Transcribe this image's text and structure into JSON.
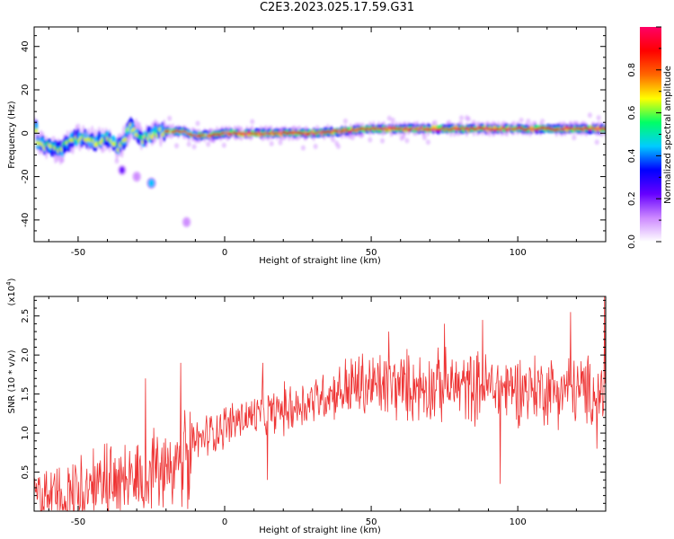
{
  "title": "C2E3.2023.025.17.59.G31",
  "chart_data": [
    {
      "type": "heatmap",
      "xlabel": "Height of straight line (km)",
      "ylabel": "Frequency (Hz)",
      "xlim": [
        -65,
        130
      ],
      "ylim": [
        -50,
        49
      ],
      "xticks": [
        -50,
        0,
        50,
        100
      ],
      "yticks": [
        -40,
        -20,
        0,
        20,
        40
      ],
      "colorbar": {
        "label": "Normalized spectral amplitude",
        "range": [
          0.0,
          1.0
        ],
        "ticks": [
          "0.0",
          "0.2",
          "0.4",
          "0.6",
          "0.8"
        ],
        "colors": [
          "#ffffff",
          "#cc88ff",
          "#6600ff",
          "#0000ff",
          "#00ccff",
          "#00ff66",
          "#ffff00",
          "#ff6600",
          "#ff0000",
          "#ff0066"
        ]
      },
      "ridge": [
        {
          "x": -64,
          "y": -4
        },
        {
          "x": -60,
          "y": -6
        },
        {
          "x": -56,
          "y": -8
        },
        {
          "x": -52,
          "y": -3
        },
        {
          "x": -48,
          "y": -2
        },
        {
          "x": -44,
          "y": -4
        },
        {
          "x": -40,
          "y": -2
        },
        {
          "x": -36,
          "y": -7
        },
        {
          "x": -32,
          "y": 3
        },
        {
          "x": -28,
          "y": -3
        },
        {
          "x": -24,
          "y": 0
        },
        {
          "x": -20,
          "y": 1
        },
        {
          "x": -15,
          "y": 1
        },
        {
          "x": -10,
          "y": -1
        },
        {
          "x": -5,
          "y": -1
        },
        {
          "x": 0,
          "y": 0
        },
        {
          "x": 10,
          "y": 0
        },
        {
          "x": 20,
          "y": 0
        },
        {
          "x": 30,
          "y": 0
        },
        {
          "x": 40,
          "y": 1
        },
        {
          "x": 50,
          "y": 2
        },
        {
          "x": 60,
          "y": 2
        },
        {
          "x": 70,
          "y": 2
        },
        {
          "x": 80,
          "y": 2
        },
        {
          "x": 90,
          "y": 2
        },
        {
          "x": 100,
          "y": 2
        },
        {
          "x": 110,
          "y": 2
        },
        {
          "x": 120,
          "y": 2
        },
        {
          "x": 130,
          "y": 2
        }
      ],
      "blobs": [
        {
          "x": -25,
          "y": -23,
          "v": 0.45
        },
        {
          "x": -13,
          "y": -41,
          "v": 0.15
        },
        {
          "x": -35,
          "y": -17,
          "v": 0.2
        },
        {
          "x": -30,
          "y": -20,
          "v": 0.15
        }
      ]
    },
    {
      "type": "line",
      "xlabel": "Height of straight line (km)",
      "ylabel": "SNR (10 * v/v)",
      "scale_label": "(x10",
      "scale_exponent": "4",
      "scale_close": ")",
      "xlim": [
        -65,
        130
      ],
      "ylim": [
        0.0,
        2.75
      ],
      "xticks": [
        -50,
        0,
        50,
        100
      ],
      "yticks": [
        "0.5",
        "1.0",
        "1.5",
        "2.0",
        "2.5"
      ],
      "color": "#ee3333",
      "trend": [
        {
          "x": -65,
          "y": 0.12
        },
        {
          "x": -55,
          "y": 0.22
        },
        {
          "x": -45,
          "y": 0.32
        },
        {
          "x": -35,
          "y": 0.42
        },
        {
          "x": -25,
          "y": 0.55
        },
        {
          "x": -15,
          "y": 0.75
        },
        {
          "x": -5,
          "y": 1.0
        },
        {
          "x": 5,
          "y": 1.18
        },
        {
          "x": 15,
          "y": 1.25
        },
        {
          "x": 25,
          "y": 1.35
        },
        {
          "x": 35,
          "y": 1.5
        },
        {
          "x": 45,
          "y": 1.6
        },
        {
          "x": 60,
          "y": 1.6
        },
        {
          "x": 80,
          "y": 1.6
        },
        {
          "x": 100,
          "y": 1.58
        },
        {
          "x": 120,
          "y": 1.55
        },
        {
          "x": 130,
          "y": 1.5
        }
      ],
      "spikes": [
        {
          "x": -27,
          "y": 1.7
        },
        {
          "x": -21,
          "y": 0.05
        },
        {
          "x": -15,
          "y": 1.9
        },
        {
          "x": -12,
          "y": 0.3
        },
        {
          "x": 13,
          "y": 1.9
        },
        {
          "x": 14.5,
          "y": 0.4
        },
        {
          "x": 56,
          "y": 2.3
        },
        {
          "x": 75,
          "y": 2.4
        },
        {
          "x": 88,
          "y": 2.45
        },
        {
          "x": 94,
          "y": 0.35
        },
        {
          "x": 118,
          "y": 2.55
        },
        {
          "x": 127,
          "y": 0.8
        },
        {
          "x": 129.5,
          "y": 2.75
        }
      ]
    }
  ]
}
